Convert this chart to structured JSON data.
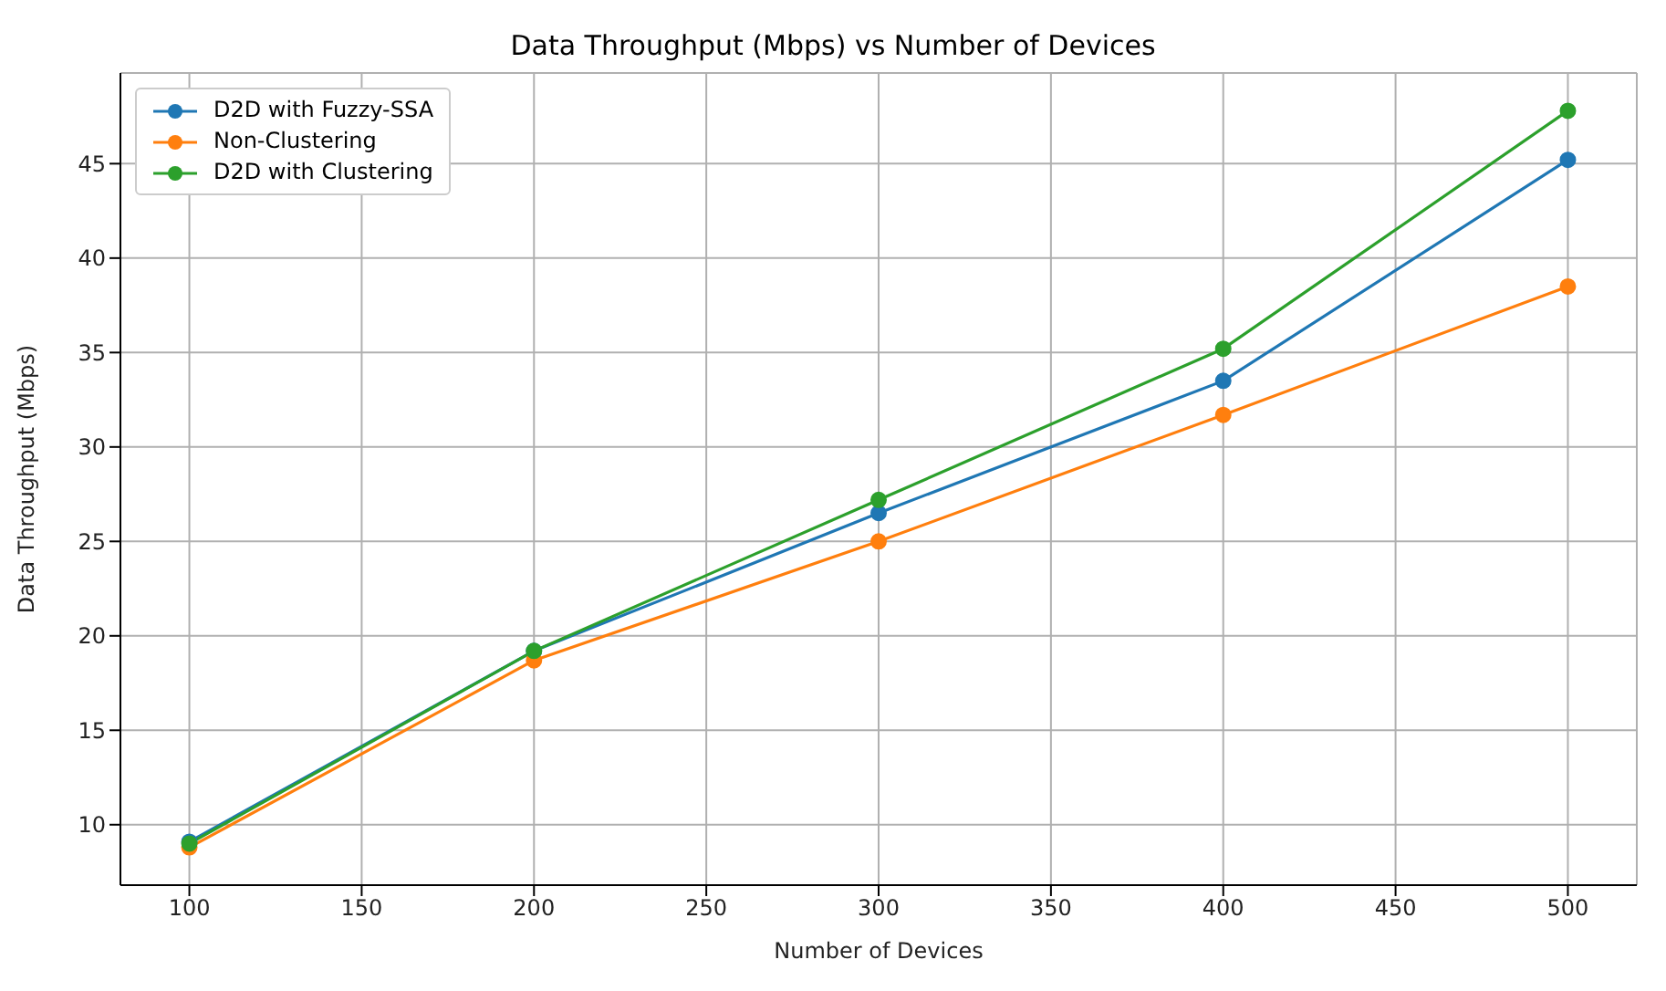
{
  "chart_data": {
    "type": "line",
    "title": "Data Throughput (Mbps) vs Number of Devices",
    "xlabel": "Number of Devices",
    "ylabel": "Data Throughput (Mbps)",
    "x": [
      100,
      200,
      300,
      400,
      500
    ],
    "series": [
      {
        "name": "D2D with Fuzzy-SSA",
        "color": "#1f77b4",
        "values": [
          9.1,
          19.2,
          26.5,
          33.5,
          45.2
        ]
      },
      {
        "name": "Non-Clustering",
        "color": "#ff7f0e",
        "values": [
          8.8,
          18.7,
          25.0,
          31.7,
          38.5
        ]
      },
      {
        "name": "D2D with Clustering",
        "color": "#2ca02c",
        "values": [
          9.0,
          19.2,
          27.2,
          35.2,
          47.8
        ]
      }
    ],
    "xlim": [
      80,
      520
    ],
    "xticks": [
      100,
      150,
      200,
      250,
      300,
      350,
      400,
      450,
      500
    ],
    "ylim": [
      6.8,
      49.8
    ],
    "yticks": [
      10,
      15,
      20,
      25,
      30,
      35,
      40,
      45
    ],
    "grid": true,
    "legend": "top left",
    "marker": "circle",
    "line_style": "solid"
  }
}
